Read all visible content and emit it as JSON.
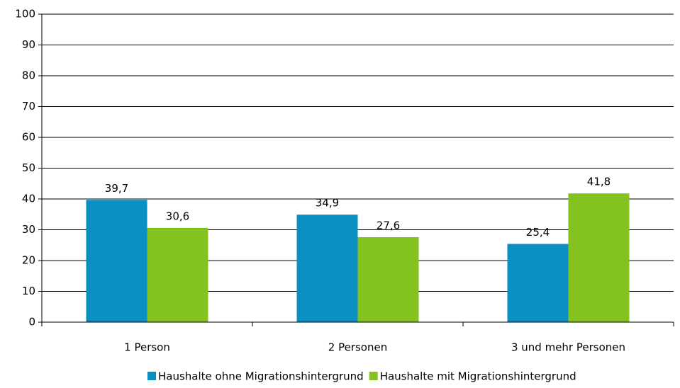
{
  "chart_data": {
    "type": "bar",
    "categories": [
      "1 Person",
      "2 Personen",
      "3 und mehr Personen"
    ],
    "series": [
      {
        "name": "Haushalte ohne Migrationshintergrund",
        "color": "#0b8fc0",
        "values": [
          39.7,
          34.9,
          25.4
        ],
        "value_labels": [
          "39,7",
          "34,9",
          "25,4"
        ]
      },
      {
        "name": "Haushalte mit Migrationshintergrund",
        "color": "#84c21f",
        "values": [
          30.6,
          27.6,
          41.8
        ],
        "value_labels": [
          "30,6",
          "27,6",
          "41,8"
        ]
      }
    ],
    "ylim": [
      0,
      100
    ],
    "yticks": [
      0,
      10,
      20,
      30,
      40,
      50,
      60,
      70,
      80,
      90,
      100
    ],
    "grid": true,
    "legend": "bottom-right"
  }
}
